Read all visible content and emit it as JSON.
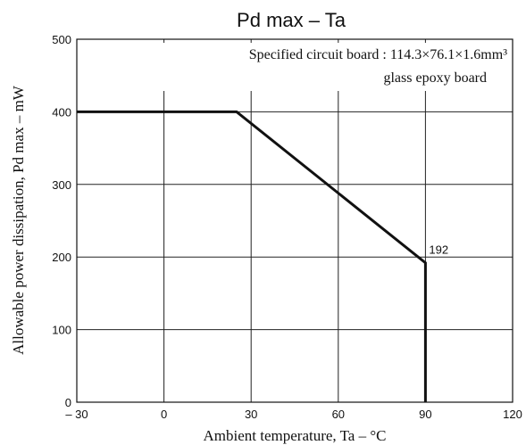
{
  "chart_data": {
    "type": "line",
    "title": "Pd max  –  Ta",
    "xlabel": "Ambient temperature, Ta  –  °C",
    "ylabel": "Allowable power dissipation, Pd max  –  mW",
    "xlim": [
      -30,
      120
    ],
    "ylim": [
      0,
      500
    ],
    "x_ticks": [
      -30,
      0,
      30,
      60,
      90,
      120
    ],
    "x_tick_labels": [
      "– 30",
      "0",
      "30",
      "60",
      "90",
      "120"
    ],
    "y_ticks": [
      0,
      100,
      200,
      300,
      400,
      500
    ],
    "y_tick_labels": [
      "0",
      "100",
      "200",
      "300",
      "400",
      "500"
    ],
    "grid": true,
    "series": [
      {
        "points": [
          [
            -30,
            400
          ],
          [
            25,
            400
          ],
          [
            90,
            192
          ],
          [
            90,
            0
          ]
        ]
      }
    ],
    "annotations": {
      "board_line1": "Specified circuit board : 114.3×76.1×1.6mm³",
      "board_line2": "glass epoxy board",
      "point_label": "192",
      "point_label_at": [
        90,
        192
      ]
    }
  }
}
